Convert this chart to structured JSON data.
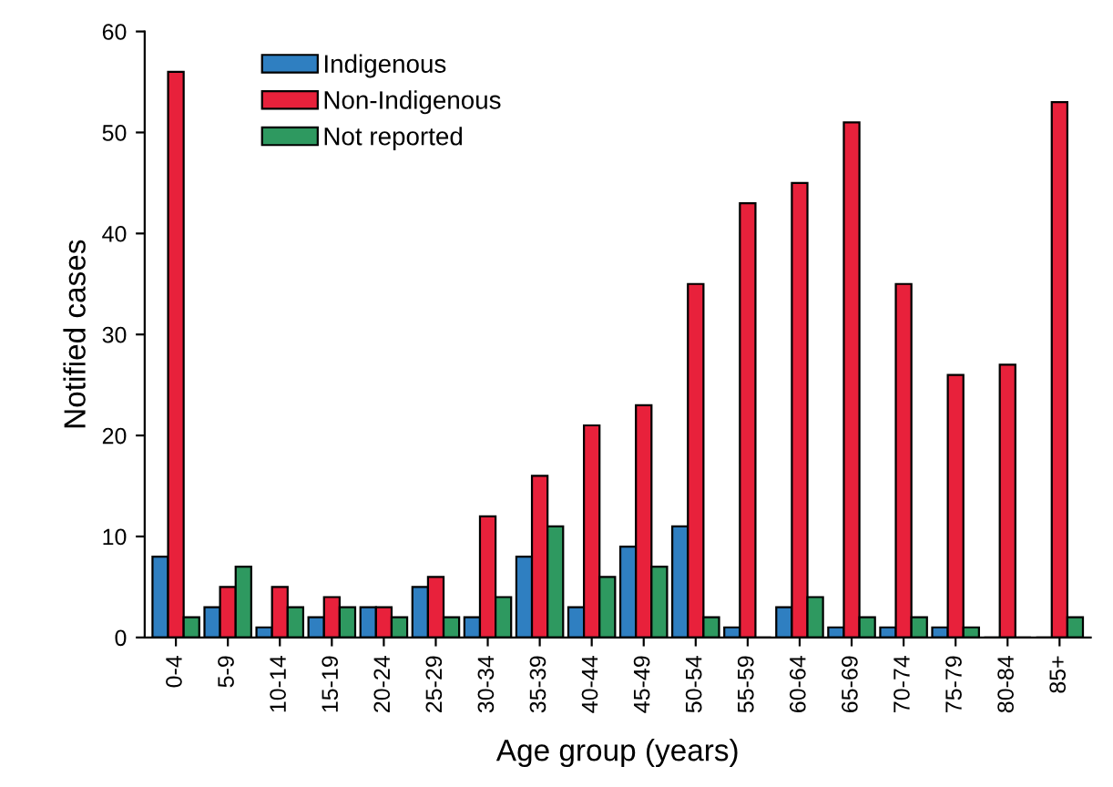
{
  "chart_data": {
    "type": "bar",
    "xlabel": "Age group (years)",
    "ylabel": "Notified cases",
    "categories": [
      "0-4",
      "5-9",
      "10-14",
      "15-19",
      "20-24",
      "25-29",
      "30-34",
      "35-39",
      "40-44",
      "45-49",
      "50-54",
      "55-59",
      "60-64",
      "65-69",
      "70-74",
      "75-79",
      "80-84",
      "85+"
    ],
    "series": [
      {
        "name": "Indigenous",
        "color": "#2f7fc1",
        "values": [
          8,
          3,
          1,
          2,
          3,
          5,
          2,
          8,
          3,
          9,
          11,
          1,
          3,
          1,
          1,
          1,
          0,
          0
        ]
      },
      {
        "name": "Non-Indigenous",
        "color": "#e8213b",
        "values": [
          56,
          5,
          5,
          4,
          3,
          6,
          12,
          16,
          21,
          23,
          35,
          43,
          45,
          51,
          35,
          26,
          27,
          53
        ]
      },
      {
        "name": "Not reported",
        "color": "#2e9960",
        "values": [
          2,
          7,
          3,
          3,
          2,
          2,
          4,
          11,
          6,
          7,
          2,
          0,
          4,
          2,
          2,
          1,
          0,
          2
        ]
      }
    ],
    "ylim": [
      0,
      60
    ],
    "yticks": [
      0,
      10,
      20,
      30,
      40,
      50,
      60
    ],
    "grid": false,
    "legend": "top left"
  }
}
